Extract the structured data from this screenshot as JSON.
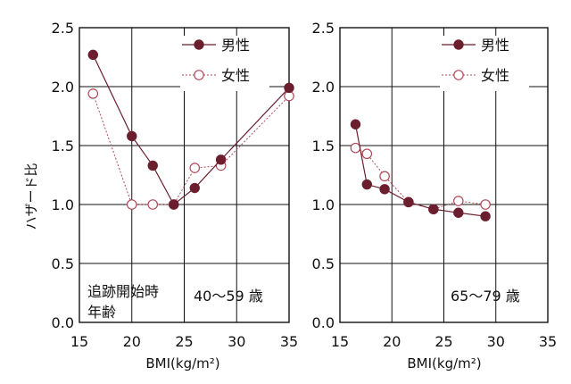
{
  "chart_data": {
    "type": "line",
    "ylabel": "ハザード比",
    "shared_xlabel": "BMI(kg/m²)",
    "colors": {
      "male": "#6b1e2e",
      "female": "#b04a5a",
      "grid": "#111111"
    },
    "panels": [
      {
        "xlabel": "BMI(kg/m²)",
        "xlim": [
          15,
          35
        ],
        "ylim": [
          0,
          2.5
        ],
        "xticks": [
          "15",
          "20",
          "25",
          "30",
          "35"
        ],
        "yticks": [
          "0.0",
          "0.5",
          "1.0",
          "1.5",
          "2.0",
          "2.5"
        ],
        "annotation_lines": [
          "追跡開始時",
          "年齢"
        ],
        "age_label": "40～59 歳",
        "legend": [
          "男性",
          "女性"
        ],
        "series": [
          {
            "name": "男性",
            "style": "solid-filled",
            "x": [
              16.3,
              20.0,
              22.0,
              24.0,
              26.0,
              28.5,
              35.0
            ],
            "y": [
              2.27,
              1.58,
              1.33,
              1.0,
              1.14,
              1.38,
              1.99
            ]
          },
          {
            "name": "女性",
            "style": "dotted-open",
            "x": [
              16.3,
              20.0,
              22.0,
              24.0,
              26.0,
              28.5,
              35.0
            ],
            "y": [
              1.94,
              1.0,
              1.0,
              1.0,
              1.31,
              1.33,
              1.92
            ]
          }
        ]
      },
      {
        "xlabel": "BMI(kg/m²)",
        "xlim": [
          15,
          35
        ],
        "ylim": [
          0,
          2.5
        ],
        "xticks": [
          "15",
          "20",
          "25",
          "30",
          "35"
        ],
        "yticks": [
          "0.0",
          "0.5",
          "1.0",
          "1.5",
          "2.0",
          "2.5"
        ],
        "age_label": "65～79 歳",
        "legend": [
          "男性",
          "女性"
        ],
        "series": [
          {
            "name": "男性",
            "style": "solid-filled",
            "x": [
              16.5,
              17.6,
              19.3,
              21.6,
              24.0,
              26.4,
              29.0
            ],
            "y": [
              1.68,
              1.17,
              1.13,
              1.02,
              0.96,
              0.93,
              0.9
            ]
          },
          {
            "name": "女性",
            "style": "dotted-open",
            "x": [
              16.5,
              17.6,
              19.3,
              21.6,
              24.0,
              26.4,
              29.0
            ],
            "y": [
              1.48,
              1.43,
              1.24,
              1.02,
              0.96,
              1.03,
              1.0
            ]
          }
        ]
      }
    ]
  }
}
